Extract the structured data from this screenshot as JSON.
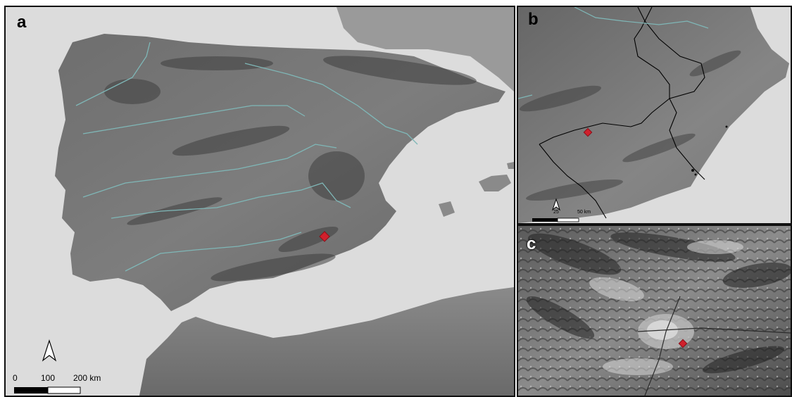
{
  "panels": {
    "a": {
      "letter": "a",
      "scale": {
        "zero": "0",
        "mid": "100",
        "end": "200 km"
      }
    },
    "b": {
      "letter": "b",
      "scale": {
        "mid": "25",
        "end": "50 km"
      }
    },
    "c": {
      "letter": "c"
    }
  },
  "colors": {
    "sea": "#dcdcdc",
    "land": "#7a7a7a",
    "river": "#7fb7b7",
    "marker": "#d0202c",
    "border": "#111111"
  },
  "icons": [
    "north-arrow-icon",
    "site-marker-icon"
  ]
}
